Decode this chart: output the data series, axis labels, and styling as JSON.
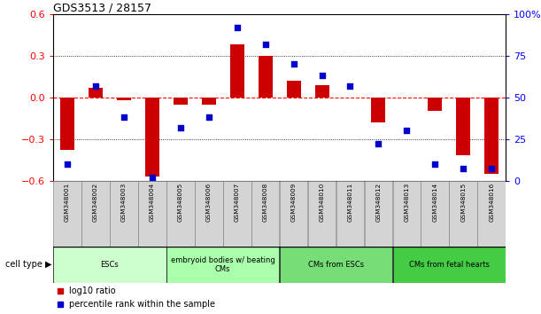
{
  "title": "GDS3513 / 28157",
  "categories": [
    "GSM348001",
    "GSM348002",
    "GSM348003",
    "GSM348004",
    "GSM348005",
    "GSM348006",
    "GSM348007",
    "GSM348008",
    "GSM348009",
    "GSM348010",
    "GSM348011",
    "GSM348012",
    "GSM348013",
    "GSM348014",
    "GSM348015",
    "GSM348016"
  ],
  "log10_ratio": [
    -0.38,
    0.07,
    -0.02,
    -0.57,
    -0.05,
    -0.05,
    0.38,
    0.3,
    0.12,
    0.09,
    0.0,
    -0.18,
    0.0,
    -0.1,
    -0.42,
    -0.55
  ],
  "percentile_rank": [
    10,
    57,
    38,
    2,
    32,
    38,
    92,
    82,
    70,
    63,
    57,
    22,
    30,
    10,
    7,
    7
  ],
  "bar_color": "#cc0000",
  "dot_color": "#0000cc",
  "ylim_left": [
    -0.6,
    0.6
  ],
  "ylim_right": [
    0,
    100
  ],
  "yticks_left": [
    -0.6,
    -0.3,
    0.0,
    0.3,
    0.6
  ],
  "yticks_right": [
    0,
    25,
    50,
    75,
    100
  ],
  "ytick_labels_right": [
    "0",
    "25",
    "50",
    "75",
    "100%"
  ],
  "dotted_lines": [
    -0.3,
    0.3
  ],
  "cell_type_groups": [
    {
      "label": "ESCs",
      "start": 0,
      "end": 3,
      "color": "#ccffcc"
    },
    {
      "label": "embryoid bodies w/ beating\nCMs",
      "start": 4,
      "end": 7,
      "color": "#aaffaa"
    },
    {
      "label": "CMs from ESCs",
      "start": 8,
      "end": 11,
      "color": "#77dd77"
    },
    {
      "label": "CMs from fetal hearts",
      "start": 12,
      "end": 15,
      "color": "#44cc44"
    }
  ],
  "cell_type_label": "cell type",
  "legend_items": [
    {
      "label": "log10 ratio",
      "color": "#cc0000"
    },
    {
      "label": "percentile rank within the sample",
      "color": "#0000cc"
    }
  ],
  "bar_width": 0.5
}
